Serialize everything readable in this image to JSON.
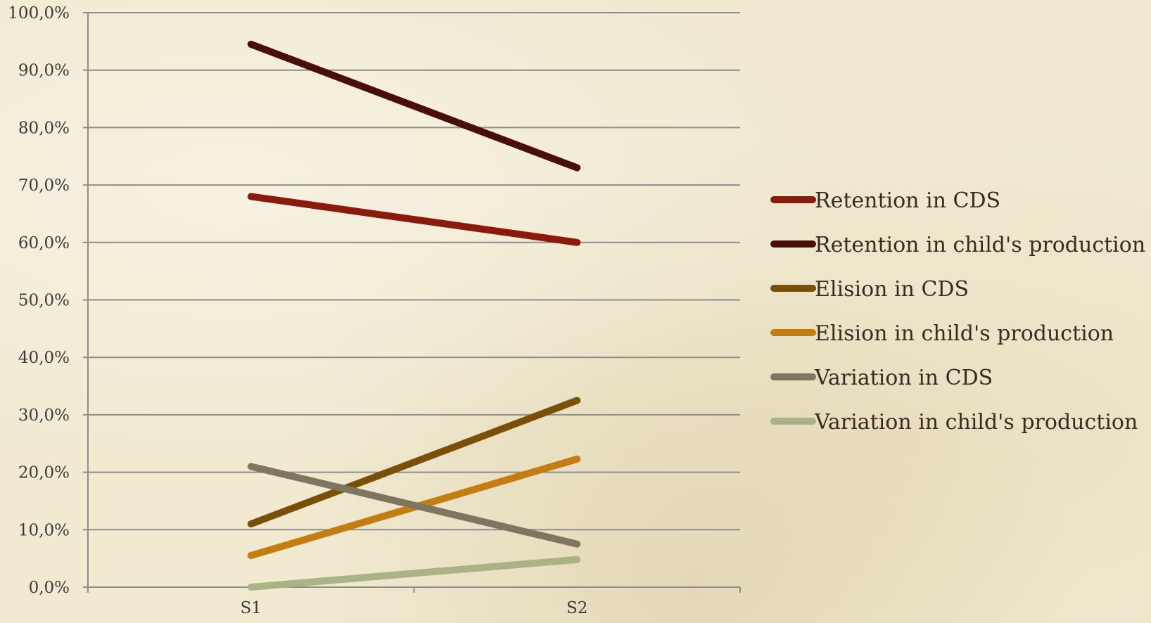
{
  "chart_data": {
    "type": "line",
    "title": "",
    "xlabel": "",
    "ylabel": "",
    "categories": [
      "S1",
      "S2"
    ],
    "ylim": [
      0,
      100
    ],
    "ytick_labels": [
      "0,0%",
      "10,0%",
      "20,0%",
      "30,0%",
      "40,0%",
      "50,0%",
      "60,0%",
      "70,0%",
      "80,0%",
      "90,0%",
      "100,0%"
    ],
    "grid": true,
    "legend_position": "right",
    "series": [
      {
        "name": "Retention in CDS",
        "values": [
          68,
          60
        ],
        "color": "#8b1a0c"
      },
      {
        "name": "Retention in child's production",
        "values": [
          94.5,
          73
        ],
        "color": "#4a0e08"
      },
      {
        "name": "Elision in CDS",
        "values": [
          11,
          32.5
        ],
        "color": "#7a4f08"
      },
      {
        "name": "Elision in child's production",
        "values": [
          5.5,
          22.3
        ],
        "color": "#c47d10"
      },
      {
        "name": "Variation in CDS",
        "values": [
          21,
          7.5
        ],
        "color": "#7f7560"
      },
      {
        "name": "Variation in child's production",
        "values": [
          0,
          4.8
        ],
        "color": "#a9b385"
      }
    ]
  }
}
